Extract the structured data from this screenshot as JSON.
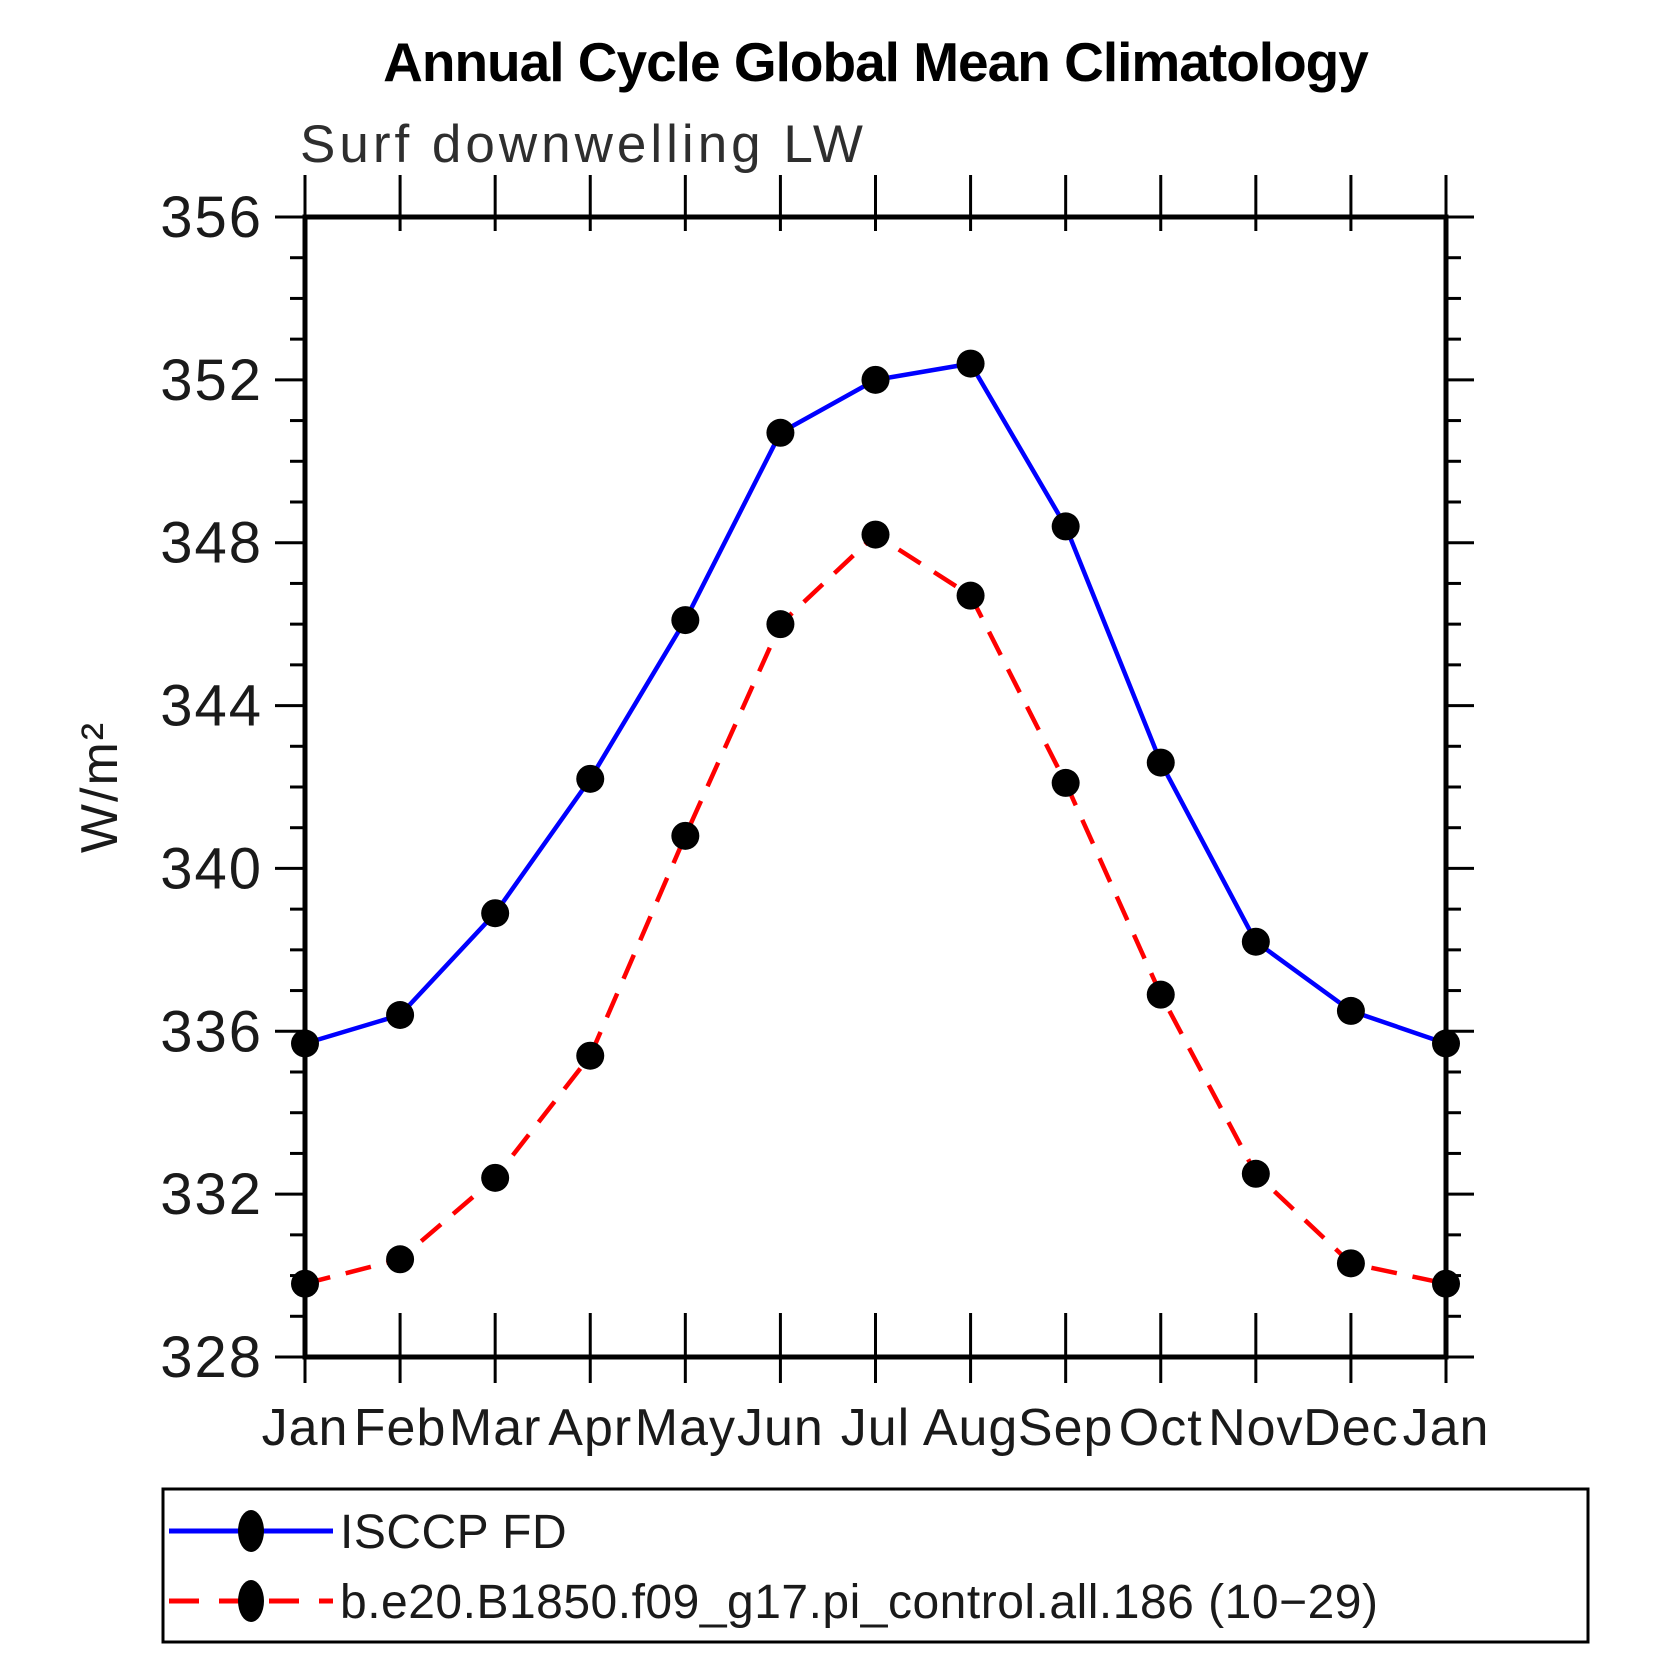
{
  "title": "Annual Cycle Global Mean Climatology",
  "subtitle": "Surf downwelling LW",
  "chart_data": {
    "type": "line",
    "title": "Annual Cycle Global Mean Climatology",
    "subtitle": "Surf downwelling LW",
    "categories": [
      "Jan",
      "Feb",
      "Mar",
      "Apr",
      "May",
      "Jun",
      "Jul",
      "Aug",
      "Sep",
      "Oct",
      "Nov",
      "Dec",
      "Jan"
    ],
    "series": [
      {
        "name": "ISCCP FD",
        "color": "#0000ff",
        "style": "solid",
        "marker": "circle",
        "marker_color": "#000000",
        "values": [
          335.7,
          336.4,
          338.9,
          342.2,
          346.1,
          350.7,
          352.0,
          352.4,
          348.4,
          342.6,
          338.2,
          336.5,
          335.7
        ]
      },
      {
        "name": "b.e20.B1850.f09_g17.pi_control.all.186 (10−29)",
        "color": "#ff0000",
        "style": "dashed",
        "marker": "circle",
        "marker_color": "#000000",
        "values": [
          329.8,
          330.4,
          332.4,
          335.4,
          340.8,
          346.0,
          348.2,
          346.7,
          342.1,
          336.9,
          332.5,
          330.3,
          329.8
        ]
      }
    ],
    "xlabel": "",
    "ylabel": "W/m²",
    "ylim": [
      328,
      356
    ],
    "yticks_major": [
      328,
      332,
      336,
      340,
      344,
      348,
      352,
      356
    ],
    "ytick_minor_step": 1,
    "grid": false,
    "legend_position": "bottom"
  }
}
